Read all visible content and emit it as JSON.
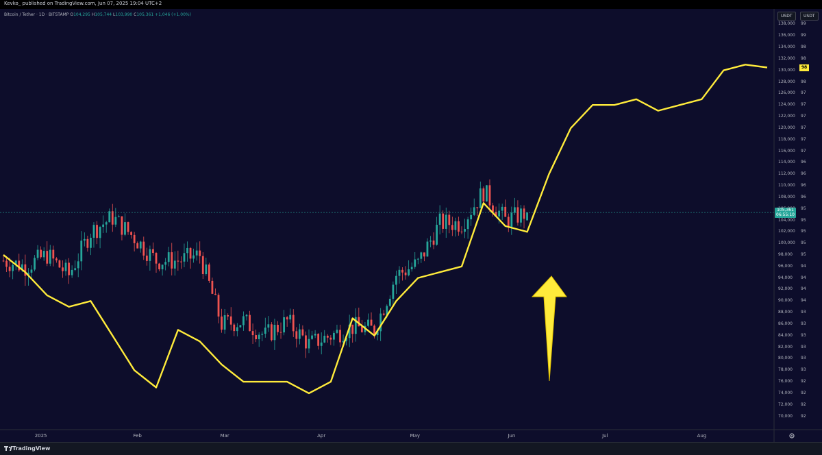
{
  "header": {
    "published_line": "Kevko_ published on TradingView.com, Jun 07, 2025 19:04 UTC+2"
  },
  "legend": {
    "symbol": "Bitcoin / Tether · 1D · BITSTAMP",
    "o_label": "O",
    "o_value": "104,295",
    "h_label": "H",
    "h_value": "105,744",
    "l_label": "L",
    "l_value": "103,990",
    "c_label": "C",
    "c_value": "105,361",
    "change": "+1,046 (+1.00%)"
  },
  "currency_left": "USDT",
  "currency_right": "USDT",
  "price_label": {
    "price": "105,361",
    "countdown": "06:55:10"
  },
  "secondary_label": "98",
  "footer": {
    "brand": "TradingView"
  },
  "colors": {
    "background": "#0d0d2b",
    "up": "#26a69a",
    "down": "#ef5350",
    "overlay": "#ffeb3b",
    "arrow": "#ffeb3b"
  },
  "icons": {
    "footer_logo": "tradingview-logo-icon",
    "settings": "gear-icon"
  },
  "chart_data": {
    "type": "line",
    "price_axis_ticks": [
      "138,000",
      "136,000",
      "134,000",
      "132,000",
      "130,000",
      "128,000",
      "126,000",
      "124,000",
      "122,000",
      "120,000",
      "118,000",
      "116,000",
      "114,000",
      "112,000",
      "110,000",
      "108,000",
      "106,000",
      "104,000",
      "102,000",
      "100,000",
      "98,000",
      "96,000",
      "94,000",
      "92,000",
      "90,000",
      "88,000",
      "86,000",
      "84,000",
      "82,000",
      "80,000",
      "78,000",
      "76,000",
      "74,000",
      "72,000",
      "70,000"
    ],
    "price_axis_ylim": [
      69000,
      139000
    ],
    "secondary_axis_ticks": [
      "99",
      "99",
      "98",
      "98",
      "98",
      "98",
      "97",
      "97",
      "97",
      "97",
      "97",
      "97",
      "96",
      "96",
      "96",
      "96",
      "95",
      "95",
      "95",
      "95",
      "95",
      "94",
      "94",
      "94",
      "94",
      "93",
      "93",
      "93",
      "93",
      "93",
      "93",
      "92",
      "92",
      "92",
      "92"
    ],
    "time_axis_ticks": [
      "2025",
      "Feb",
      "Mar",
      "Apr",
      "May",
      "Jun",
      "Jul",
      "Aug"
    ],
    "candles": {
      "x": [
        "2024-12-20",
        "2024-12-27",
        "2025-01-03",
        "2025-01-10",
        "2025-01-17",
        "2025-01-24",
        "2025-01-31",
        "2025-02-07",
        "2025-02-14",
        "2025-02-21",
        "2025-02-28",
        "2025-03-07",
        "2025-03-14",
        "2025-03-21",
        "2025-03-28",
        "2025-04-04",
        "2025-04-11",
        "2025-04-18",
        "2025-04-25",
        "2025-05-02",
        "2025-05-09",
        "2025-05-16",
        "2025-05-23",
        "2025-05-30",
        "2025-06-06"
      ],
      "close": [
        97000,
        96000,
        98000,
        94500,
        102000,
        104500,
        101000,
        97000,
        97000,
        98000,
        86000,
        86500,
        84000,
        86500,
        82500,
        84000,
        85500,
        85000,
        94500,
        96500,
        103500,
        103500,
        109000,
        104000,
        105361
      ]
    },
    "overlay_series": {
      "x": [
        "2024-12-20",
        "2024-12-27",
        "2025-01-03",
        "2025-01-10",
        "2025-01-17",
        "2025-01-24",
        "2025-01-31",
        "2025-02-07",
        "2025-02-14",
        "2025-02-21",
        "2025-02-28",
        "2025-03-07",
        "2025-03-14",
        "2025-03-21",
        "2025-03-28",
        "2025-04-04",
        "2025-04-11",
        "2025-04-18",
        "2025-04-25",
        "2025-05-02",
        "2025-05-09",
        "2025-05-16",
        "2025-05-23",
        "2025-05-30",
        "2025-06-06",
        "2025-06-13",
        "2025-06-20",
        "2025-06-27",
        "2025-07-04",
        "2025-07-11",
        "2025-07-18",
        "2025-07-25",
        "2025-08-01",
        "2025-08-08",
        "2025-08-15",
        "2025-08-22"
      ],
      "values": [
        98000,
        95000,
        91000,
        89000,
        90000,
        84000,
        78000,
        75000,
        85000,
        83000,
        79000,
        76000,
        76000,
        76000,
        74000,
        76000,
        87000,
        84000,
        90000,
        94000,
        95000,
        96000,
        107000,
        103000,
        102000,
        112000,
        120000,
        124000,
        124000,
        125000,
        123000,
        124000,
        125000,
        130000,
        131000,
        130500
      ]
    }
  }
}
